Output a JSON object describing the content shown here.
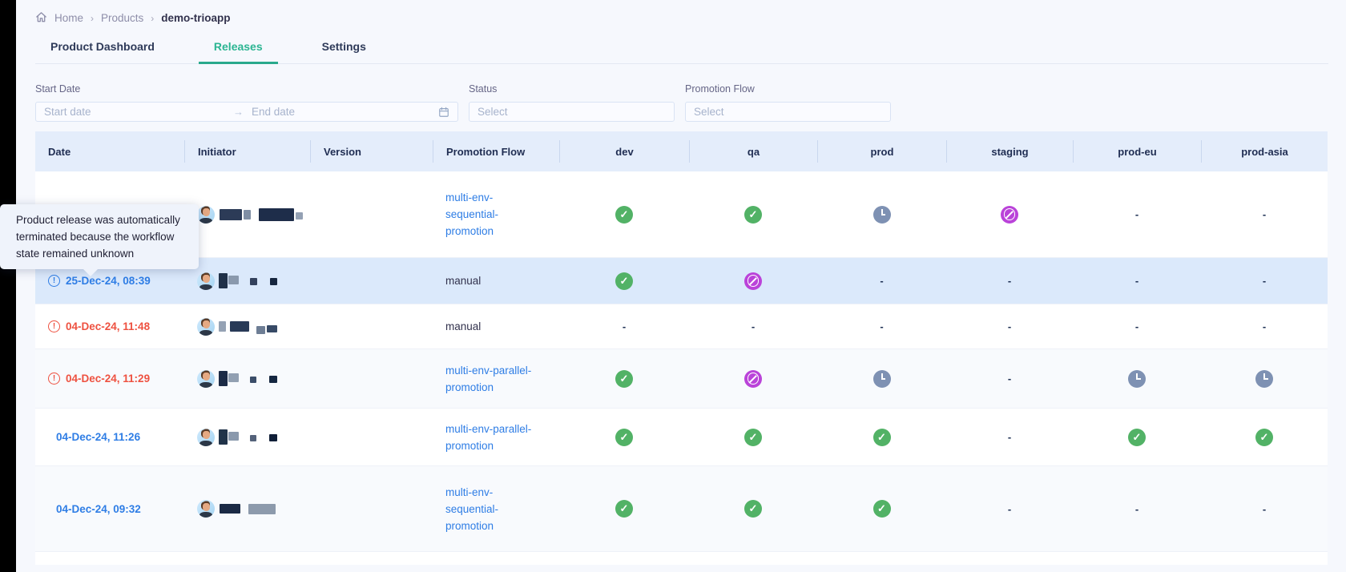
{
  "breadcrumb": {
    "items": [
      {
        "label": "Home"
      },
      {
        "label": "Products"
      },
      {
        "label": "demo-trioapp"
      }
    ],
    "separator": "›"
  },
  "tabs": [
    {
      "label": "Product Dashboard",
      "active": false
    },
    {
      "label": "Releases",
      "active": true
    },
    {
      "label": "Settings",
      "active": false
    }
  ],
  "filters": {
    "start_date": {
      "label": "Start Date",
      "start_placeholder": "Start date",
      "end_placeholder": "End date"
    },
    "status": {
      "label": "Status",
      "placeholder": "Select"
    },
    "promotion_flow": {
      "label": "Promotion Flow",
      "placeholder": "Select"
    }
  },
  "tooltip": {
    "text": "Product release was automatically terminated because the workflow state remained unknown"
  },
  "table": {
    "columns": [
      "Date",
      "Initiator",
      "Version",
      "Promotion Flow",
      "dev",
      "qa",
      "prod",
      "staging",
      "prod-eu",
      "prod-asia"
    ],
    "env_columns": [
      "dev",
      "qa",
      "prod",
      "staging",
      "prod-eu",
      "prod-asia"
    ],
    "rows": [
      {
        "date": "",
        "date_state": "hidden",
        "alert": false,
        "version": "",
        "flow": "multi-env-sequential-promotion",
        "flow_is_link": true,
        "envs": [
          "success",
          "success",
          "pending",
          "terminated",
          "none",
          "none"
        ],
        "highlighted": false,
        "partial": false
      },
      {
        "date": "25-Dec-24, 08:39",
        "date_state": "info",
        "alert": true,
        "version": "",
        "flow": "manual",
        "flow_is_link": false,
        "envs": [
          "success",
          "terminated",
          "none",
          "none",
          "none",
          "none"
        ],
        "highlighted": true,
        "partial": false
      },
      {
        "date": "04-Dec-24, 11:48",
        "date_state": "error",
        "alert": true,
        "version": "",
        "flow": "manual",
        "flow_is_link": false,
        "envs": [
          "none",
          "none",
          "none",
          "none",
          "none",
          "none"
        ],
        "highlighted": false,
        "partial": false
      },
      {
        "date": "04-Dec-24, 11:29",
        "date_state": "error",
        "alert": true,
        "version": "",
        "flow": "multi-env-parallel-promotion",
        "flow_is_link": true,
        "envs": [
          "success",
          "terminated",
          "pending",
          "none",
          "pending",
          "pending"
        ],
        "highlighted": false,
        "partial": false
      },
      {
        "date": "04-Dec-24, 11:26",
        "date_state": "info",
        "alert": false,
        "version": "",
        "flow": "multi-env-parallel-promotion",
        "flow_is_link": true,
        "envs": [
          "success",
          "success",
          "success",
          "none",
          "success",
          "success"
        ],
        "highlighted": false,
        "partial": false
      },
      {
        "date": "04-Dec-24, 09:32",
        "date_state": "info",
        "alert": false,
        "version": "",
        "flow": "multi-env-sequential-promotion",
        "flow_is_link": true,
        "envs": [
          "success",
          "success",
          "success",
          "none",
          "none",
          "none"
        ],
        "highlighted": false,
        "partial": false
      },
      {
        "date": "",
        "date_state": "hidden",
        "alert": false,
        "version": "",
        "flow": "",
        "flow_is_link": false,
        "envs": [
          "",
          "",
          "",
          "",
          "",
          ""
        ],
        "highlighted": false,
        "partial": true
      }
    ]
  },
  "colors": {
    "accent_teal": "#2bb592",
    "link_blue": "#2e7de5",
    "alert_red": "#ee5140",
    "success_green": "#52b266",
    "terminated_purple": "#ba43d9",
    "pending_slate": "#7e91b3",
    "header_bg": "#e4edfb",
    "row_hover": "#dbe9fb"
  }
}
